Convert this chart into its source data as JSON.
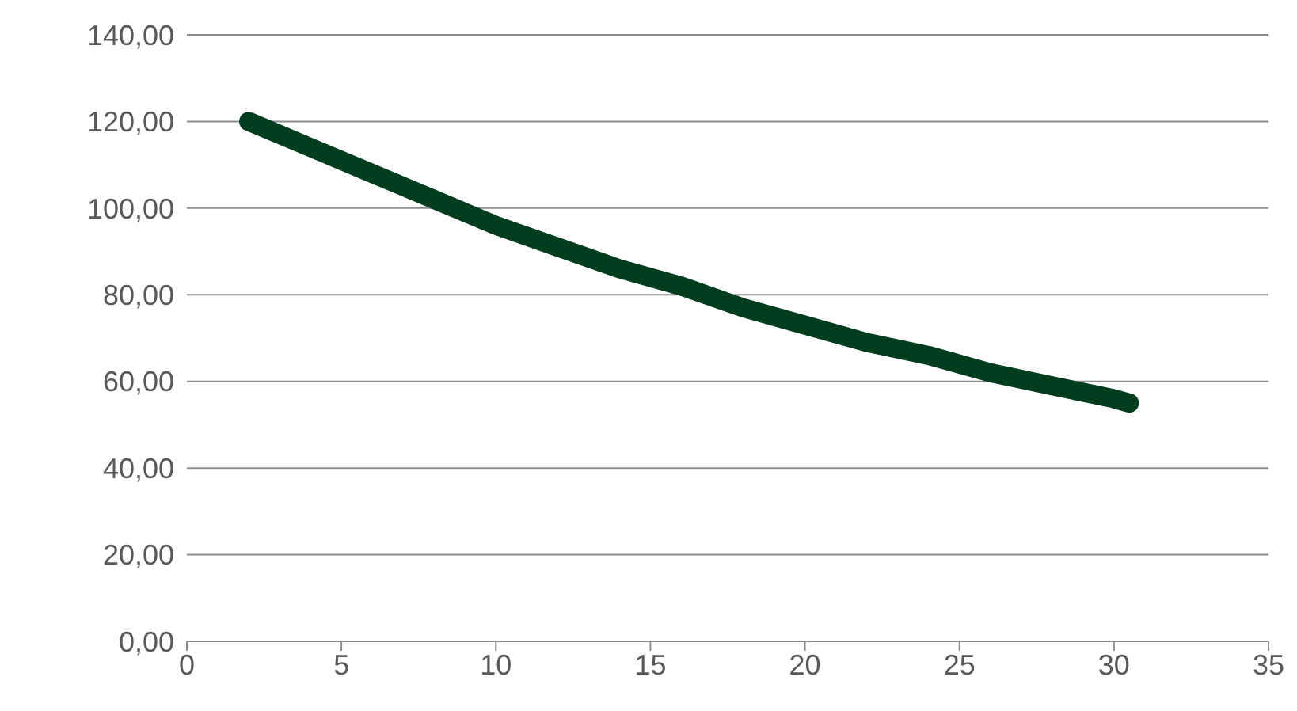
{
  "chart_data": {
    "type": "line",
    "x": [
      2,
      4,
      6,
      8,
      10,
      12,
      14,
      16,
      18,
      20,
      22,
      24,
      26,
      28,
      30,
      30.5
    ],
    "series": [
      {
        "color": "#003d1f",
        "values": [
          120,
          114,
          108,
          102,
          96,
          91,
          86,
          82,
          77,
          73,
          69,
          66,
          62,
          59,
          56,
          55
        ]
      }
    ],
    "xlim": [
      0,
      35
    ],
    "xticks": [
      0,
      5,
      10,
      15,
      20,
      25,
      30,
      35
    ],
    "ylim": [
      0,
      140
    ],
    "yticks": [
      {
        "value": 0,
        "label": "0,00"
      },
      {
        "value": 20,
        "label": "20,00"
      },
      {
        "value": 40,
        "label": "40,00"
      },
      {
        "value": 60,
        "label": "60,00"
      },
      {
        "value": 80,
        "label": "80,00"
      },
      {
        "value": 100,
        "label": "100,00"
      },
      {
        "value": 120,
        "label": "120,00"
      },
      {
        "value": 140,
        "label": "140,00"
      }
    ],
    "grid": "y",
    "marker": "none",
    "line_style": "solid"
  }
}
